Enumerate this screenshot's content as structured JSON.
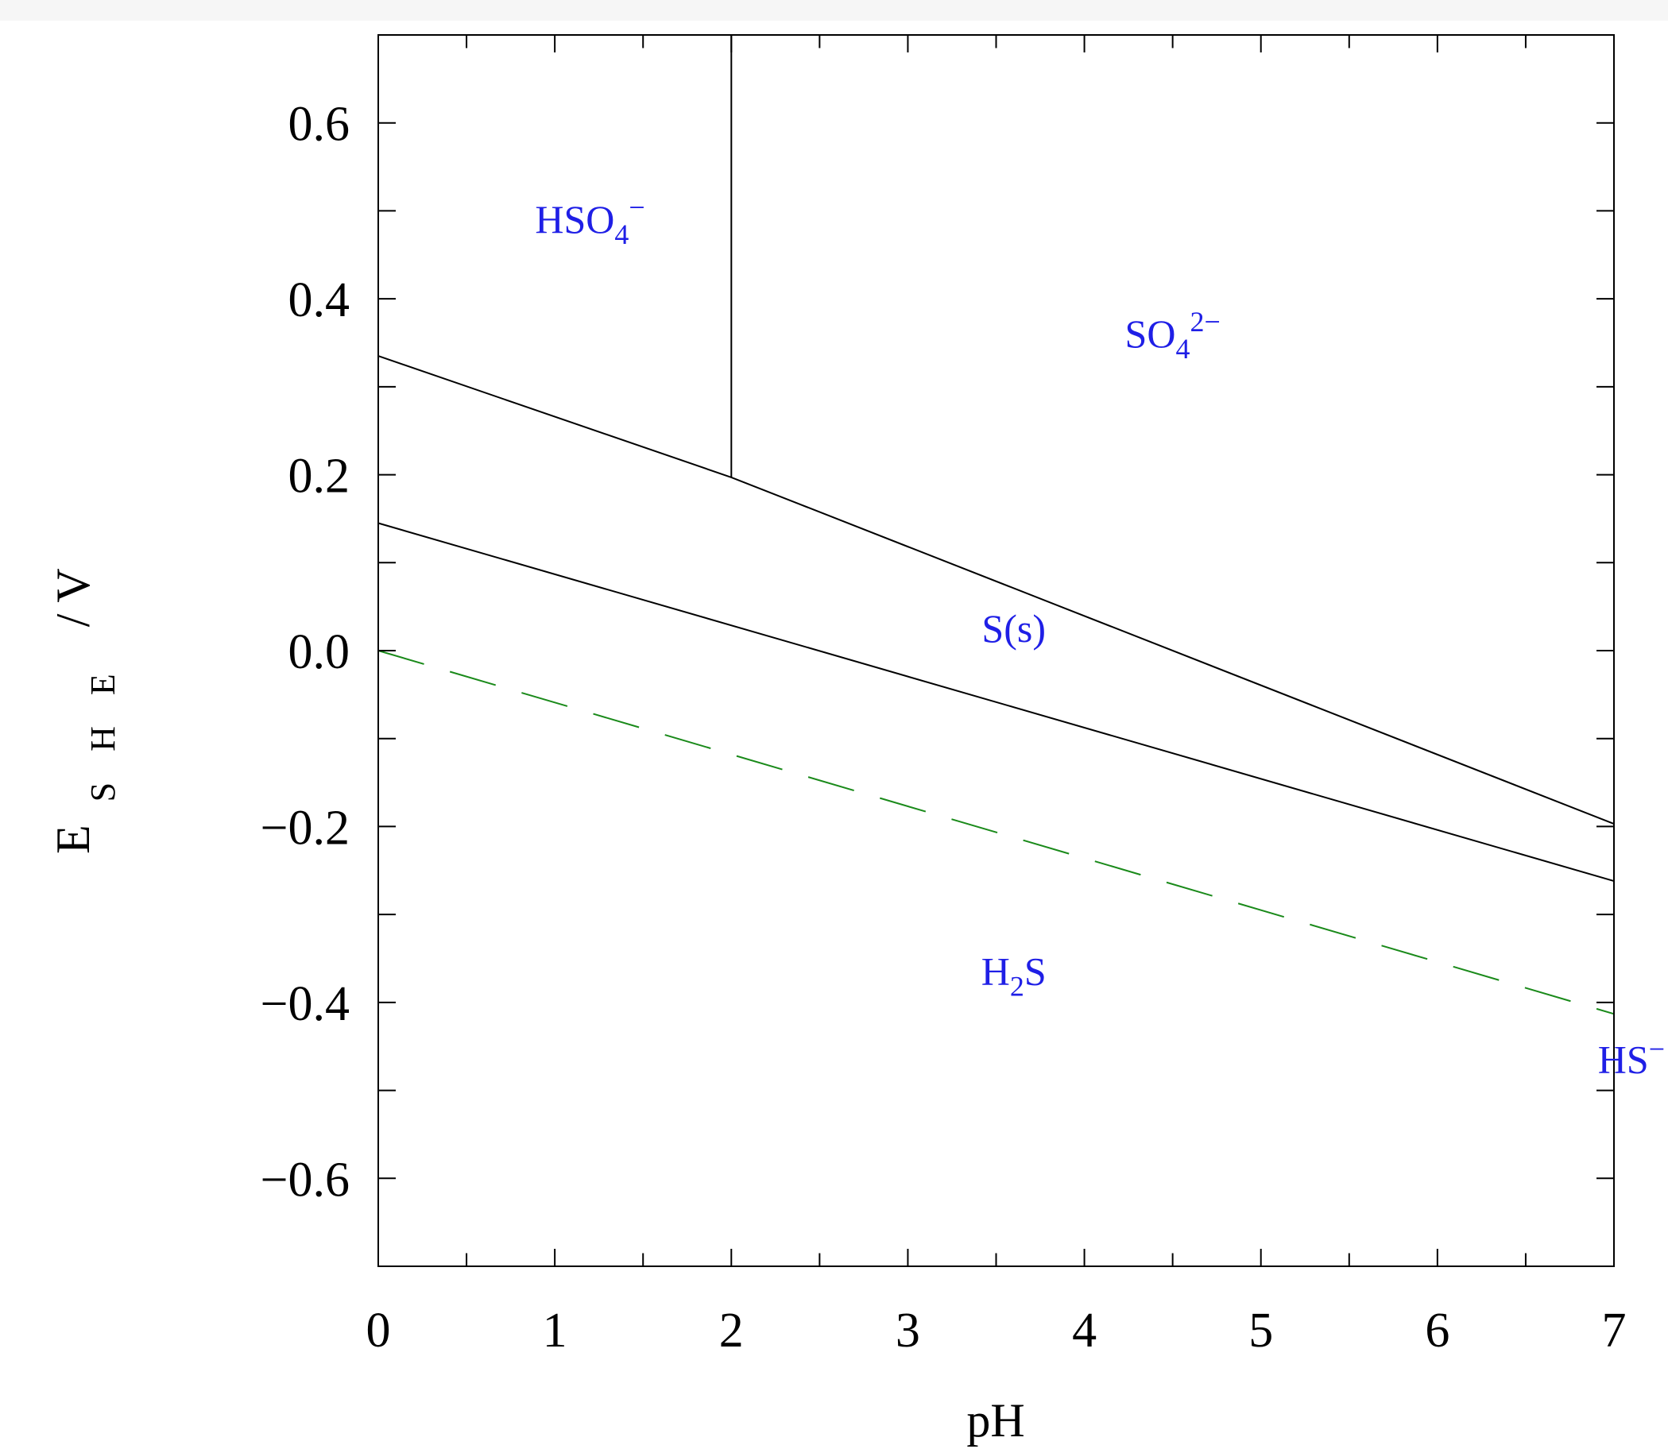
{
  "chart_data": {
    "type": "line",
    "xlabel": "pH",
    "ylabel": {
      "main": "E",
      "sub": "S H E",
      "unit": "/ V"
    },
    "xlim": [
      0,
      7
    ],
    "ylim": [
      -0.7,
      0.7
    ],
    "xticks": [
      "0",
      "1",
      "2",
      "3",
      "4",
      "5",
      "6",
      "7"
    ],
    "yticks": [
      {
        "value": 0.6,
        "label": "0.6"
      },
      {
        "value": 0.4,
        "label": "0.4"
      },
      {
        "value": 0.2,
        "label": "0.2"
      },
      {
        "value": 0.0,
        "label": "0.0"
      },
      {
        "value": -0.2,
        "label": "−0.2"
      },
      {
        "value": -0.4,
        "label": "−0.4"
      },
      {
        "value": -0.6,
        "label": "−0.6"
      }
    ],
    "minor_step": 0.1,
    "grid": false,
    "series": [
      {
        "style": "solid",
        "color": "#000000",
        "points": [
          [
            0,
            0.335
          ],
          [
            2,
            0.197
          ],
          [
            7,
            -0.197
          ]
        ]
      },
      {
        "style": "solid",
        "color": "#000000",
        "points": [
          [
            0,
            0.145
          ],
          [
            7,
            -0.262
          ]
        ]
      },
      {
        "style": "solid",
        "color": "#000000",
        "points": [
          [
            2,
            0.197
          ],
          [
            2,
            0.7
          ]
        ]
      },
      {
        "style": "dashed",
        "color": "#1a8a1a",
        "points": [
          [
            0,
            0.0
          ],
          [
            7,
            -0.413
          ]
        ]
      }
    ],
    "regions": [
      {
        "main": "HSO",
        "sub": "4",
        "sup": "−",
        "x": 1.2,
        "y": 0.475
      },
      {
        "main": "SO",
        "sub": "4",
        "sup": "2−",
        "x": 4.5,
        "y": 0.345
      },
      {
        "main": "S(s)",
        "sub": "",
        "sup": "",
        "x": 3.6,
        "y": 0.01
      },
      {
        "main": "H",
        "sub": "2",
        "sup": "S",
        "x": 3.6,
        "y": -0.38
      },
      {
        "main": "HS",
        "sub": "",
        "sup": "−",
        "x": 7.0,
        "y": -0.48
      }
    ]
  }
}
